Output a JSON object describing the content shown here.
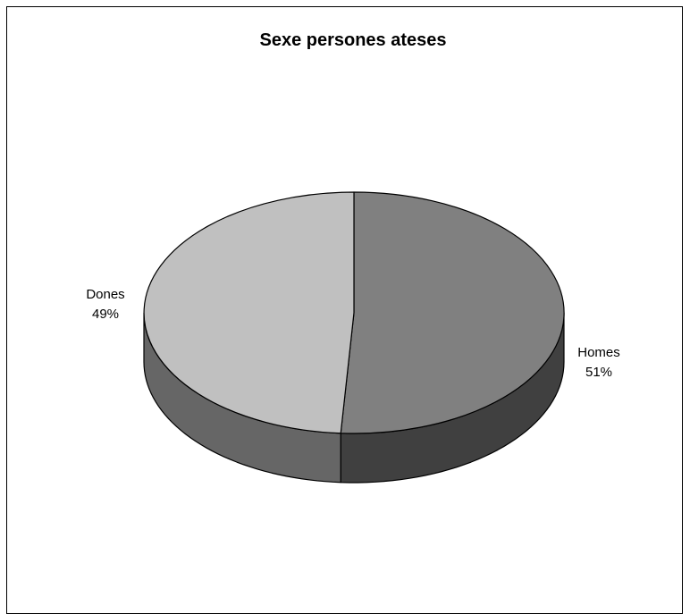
{
  "chart_data": {
    "type": "pie",
    "style": "3d",
    "title": "Sexe persones ateses",
    "slices": [
      {
        "label": "Homes",
        "value": 51,
        "value_label": "51%",
        "top_color": "#808080",
        "side_color": "#404040"
      },
      {
        "label": "Dones",
        "value": 49,
        "value_label": "49%",
        "top_color": "#c0c0c0",
        "side_color": "#666666"
      }
    ],
    "start_angle": "12 o'clock",
    "direction": "clockwise",
    "legend": "none",
    "data_labels": "outside, category and percent"
  }
}
